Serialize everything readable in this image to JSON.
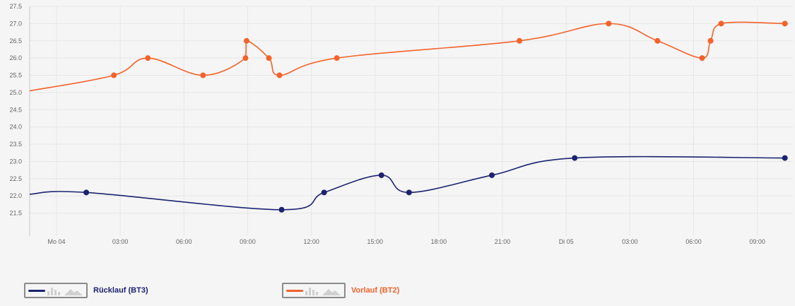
{
  "chart_data": {
    "type": "line",
    "x_axis": {
      "labels": [
        "Mo 04",
        "03:00",
        "06:00",
        "09:00",
        "12:00",
        "15:00",
        "18:00",
        "21:00",
        "Di 05",
        "03:00",
        "06:00",
        "09:00"
      ],
      "tick_hours": [
        0,
        3,
        6,
        9,
        12,
        15,
        18,
        21,
        24,
        27,
        30,
        33
      ]
    },
    "y_axis": {
      "min": 21.0,
      "max": 27.5,
      "ticks": [
        "21.5",
        "22.0",
        "22.5",
        "23.0",
        "23.5",
        "24.0",
        "24.5",
        "25.0",
        "25.5",
        "26.0",
        "26.5",
        "27.0",
        "27.5"
      ]
    },
    "grid": true,
    "series": [
      {
        "name": "Rücklauf (BT3)",
        "color": "#1b2370",
        "start": 22.05,
        "points": [
          [
            1.4,
            22.1
          ],
          [
            10.6,
            21.6
          ],
          [
            12.6,
            22.1
          ],
          [
            15.3,
            22.6
          ],
          [
            16.6,
            22.1
          ],
          [
            20.5,
            22.6
          ],
          [
            24.4,
            23.1
          ],
          [
            34.3,
            23.1
          ]
        ]
      },
      {
        "name": "Vorlauf (BT2)",
        "color": "#f4622a",
        "start": 25.05,
        "points": [
          [
            2.7,
            25.5
          ],
          [
            4.3,
            26.0
          ],
          [
            6.9,
            25.5
          ],
          [
            8.9,
            26.0
          ],
          [
            8.95,
            26.5
          ],
          [
            10.0,
            26.0
          ],
          [
            10.5,
            25.5
          ],
          [
            13.2,
            26.0
          ],
          [
            21.8,
            26.5
          ],
          [
            26.0,
            27.0
          ],
          [
            28.3,
            26.5
          ],
          [
            30.4,
            26.0
          ],
          [
            30.8,
            26.5
          ],
          [
            31.3,
            27.0
          ],
          [
            34.3,
            27.0
          ]
        ]
      }
    ],
    "legend": "bottom-left"
  },
  "legend": {
    "items": [
      {
        "label": "Rücklauf (BT3)",
        "color": "#1b2370"
      },
      {
        "label": "Vorlauf (BT2)",
        "color": "#f4622a"
      }
    ]
  }
}
